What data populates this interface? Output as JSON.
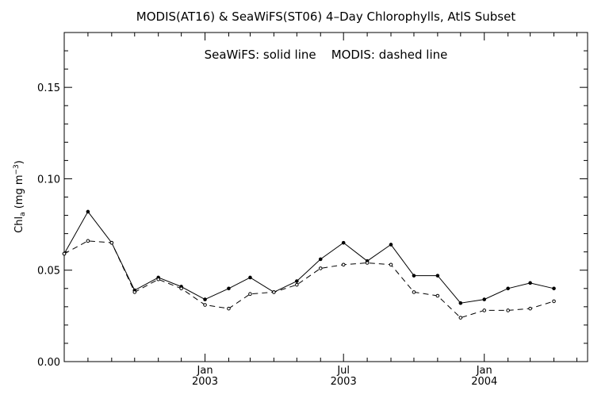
{
  "chart_data": {
    "type": "line",
    "title": "MODIS(AT16) & SeaWiFS(ST06) 4–Day Chlorophylls, AtlS Subset",
    "annotation": "SeaWiFS: solid line    MODIS: dashed line",
    "ylabel": {
      "base": "Chl",
      "sub": "a",
      "unit_open": " (mg m",
      "sup": "−3",
      "unit_close": ")"
    },
    "ylim": [
      0.0,
      0.18
    ],
    "yticks": [
      {
        "value": 0.0,
        "label": "0.00"
      },
      {
        "value": 0.05,
        "label": "0.05"
      },
      {
        "value": 0.1,
        "label": "0.10"
      },
      {
        "value": 0.15,
        "label": "0.15"
      }
    ],
    "x_range": [
      "2002-07-01",
      "2004-05-15"
    ],
    "x_minor_ticks": [
      "2002-08-01",
      "2002-09-01",
      "2002-10-01",
      "2002-11-01",
      "2002-12-01",
      "2003-01-01",
      "2003-02-01",
      "2003-03-01",
      "2003-04-01",
      "2003-05-01",
      "2003-06-01",
      "2003-07-01",
      "2003-08-01",
      "2003-09-01",
      "2003-10-01",
      "2003-11-01",
      "2003-12-01",
      "2004-01-01",
      "2004-02-01",
      "2004-03-01",
      "2004-04-01",
      "2004-05-01"
    ],
    "x_labeled_ticks": [
      {
        "date": "2003-01-01",
        "month": "Jan",
        "year": "2003"
      },
      {
        "date": "2003-07-01",
        "month": "Jul",
        "year": "2003"
      },
      {
        "date": "2004-01-01",
        "month": "Jan",
        "year": "2004"
      }
    ],
    "grid": false,
    "series": [
      {
        "name": "SeaWiFS",
        "style": "solid",
        "points": [
          {
            "x": "2002-07-01",
            "y": 0.059
          },
          {
            "x": "2002-08-01",
            "y": 0.082
          },
          {
            "x": "2002-09-01",
            "y": 0.065
          },
          {
            "x": "2002-10-01",
            "y": 0.039
          },
          {
            "x": "2002-11-01",
            "y": 0.046
          },
          {
            "x": "2002-12-01",
            "y": 0.041
          },
          {
            "x": "2003-01-01",
            "y": 0.034
          },
          {
            "x": "2003-02-01",
            "y": 0.04
          },
          {
            "x": "2003-03-01",
            "y": 0.046
          },
          {
            "x": "2003-04-01",
            "y": 0.038
          },
          {
            "x": "2003-05-01",
            "y": 0.044
          },
          {
            "x": "2003-06-01",
            "y": 0.056
          },
          {
            "x": "2003-07-01",
            "y": 0.065
          },
          {
            "x": "2003-08-01",
            "y": 0.055
          },
          {
            "x": "2003-09-01",
            "y": 0.064
          },
          {
            "x": "2003-10-01",
            "y": 0.047
          },
          {
            "x": "2003-11-01",
            "y": 0.047
          },
          {
            "x": "2003-12-01",
            "y": 0.032
          },
          {
            "x": "2004-01-01",
            "y": 0.034
          },
          {
            "x": "2004-02-01",
            "y": 0.04
          },
          {
            "x": "2004-03-01",
            "y": 0.043
          },
          {
            "x": "2004-04-01",
            "y": 0.04
          }
        ]
      },
      {
        "name": "MODIS",
        "style": "dashed",
        "points": [
          {
            "x": "2002-07-01",
            "y": 0.059
          },
          {
            "x": "2002-08-01",
            "y": 0.066
          },
          {
            "x": "2002-09-01",
            "y": 0.065
          },
          {
            "x": "2002-10-01",
            "y": 0.038
          },
          {
            "x": "2002-11-01",
            "y": 0.045
          },
          {
            "x": "2002-12-01",
            "y": 0.04
          },
          {
            "x": "2003-01-01",
            "y": 0.031
          },
          {
            "x": "2003-02-01",
            "y": 0.029
          },
          {
            "x": "2003-03-01",
            "y": 0.037
          },
          {
            "x": "2003-04-01",
            "y": 0.038
          },
          {
            "x": "2003-05-01",
            "y": 0.042
          },
          {
            "x": "2003-06-01",
            "y": 0.051
          },
          {
            "x": "2003-07-01",
            "y": 0.053
          },
          {
            "x": "2003-08-01",
            "y": 0.054
          },
          {
            "x": "2003-09-01",
            "y": 0.053
          },
          {
            "x": "2003-10-01",
            "y": 0.038
          },
          {
            "x": "2003-11-01",
            "y": 0.036
          },
          {
            "x": "2003-12-01",
            "y": 0.024
          },
          {
            "x": "2004-01-01",
            "y": 0.028
          },
          {
            "x": "2004-02-01",
            "y": 0.028
          },
          {
            "x": "2004-03-01",
            "y": 0.029
          },
          {
            "x": "2004-04-01",
            "y": 0.033
          }
        ]
      }
    ]
  }
}
